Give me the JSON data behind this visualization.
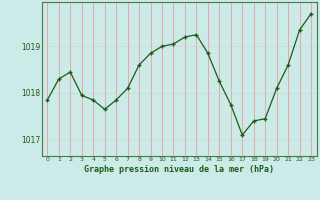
{
  "x": [
    0,
    1,
    2,
    3,
    4,
    5,
    6,
    7,
    8,
    9,
    10,
    11,
    12,
    13,
    14,
    15,
    16,
    17,
    18,
    19,
    20,
    21,
    22,
    23
  ],
  "y": [
    1017.85,
    1018.3,
    1018.45,
    1017.95,
    1017.85,
    1017.65,
    1017.85,
    1018.1,
    1018.6,
    1018.85,
    1019.0,
    1019.05,
    1019.2,
    1019.25,
    1018.85,
    1018.25,
    1017.75,
    1017.1,
    1017.4,
    1017.45,
    1018.1,
    1018.6,
    1019.35,
    1019.7
  ],
  "bg_color": "#cceae7",
  "line_color": "#1a5c1a",
  "marker_color": "#1a5c1a",
  "grid_color_v": "#e8a0a0",
  "grid_color_h": "#c8dede",
  "xlabel": "Graphe pression niveau de la mer (hPa)",
  "xlabel_color": "#1a5c1a",
  "ylabel_ticks": [
    1017,
    1018,
    1019
  ],
  "xlim": [
    -0.5,
    23.5
  ],
  "ylim": [
    1016.65,
    1019.95
  ],
  "xtick_labels": [
    "0",
    "1",
    "2",
    "3",
    "4",
    "5",
    "6",
    "7",
    "8",
    "9",
    "10",
    "11",
    "12",
    "13",
    "14",
    "15",
    "16",
    "17",
    "18",
    "19",
    "20",
    "21",
    "22",
    "23"
  ],
  "border_color": "#4a7a4a",
  "figsize": [
    3.2,
    2.0
  ],
  "dpi": 100
}
